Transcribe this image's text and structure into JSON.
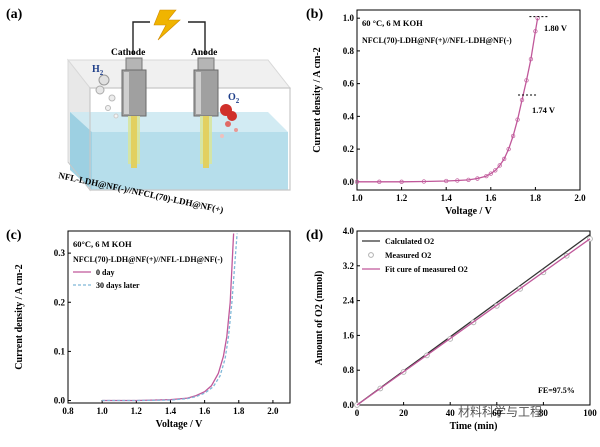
{
  "panel_a": {
    "label": "(a)",
    "cathode_label": "Cathode",
    "anode_label": "Anode",
    "h2_label": "H",
    "h2_sub": "2",
    "o2_label": "O",
    "o2_sub": "2",
    "cell_label": "NFL-LDH@NF(-)//NFCL(70)-LDH@NF(+)",
    "colors": {
      "liquid": "#bfe3ee",
      "electrode": "#9a9a9a",
      "wire": "#e0b020",
      "o2_bubble": "#d0302a",
      "h2_bubble": "#d8d8d8"
    }
  },
  "panel_b": {
    "label": "(b)",
    "condition": "60 °C, 6 M KOH",
    "device": "NFCL(70)-LDH@NF(+)//NFL-LDH@NF(-)",
    "annotation_high": "1.80 V",
    "annotation_low": "1.74 V"
  },
  "panel_c": {
    "label": "(c)",
    "condition": "60°C, 6 M KOH",
    "device": "NFCL(70)-LDH@NF(+)//NFL-LDH@NF(-)"
  },
  "panel_d": {
    "label": "(d)",
    "fe_label": "FE=97.5%",
    "watermark": "材料科学与工程"
  },
  "chart_data": [
    {
      "type": "line",
      "title": "",
      "xlabel": "Voltage / V",
      "ylabel": "Current density / A cm-2",
      "xlim": [
        1.0,
        2.0
      ],
      "ylim": [
        -0.05,
        1.05
      ],
      "xticks": [
        "1.0",
        "1.2",
        "1.4",
        "1.6",
        "1.8",
        "2.0"
      ],
      "yticks": [
        "0.0",
        "0.2",
        "0.4",
        "0.6",
        "0.8",
        "1.0"
      ],
      "series": [
        {
          "name": "NFCL(70)-LDH@NF(+)//NFL-LDH@NF(-)",
          "color": "#c0589a",
          "x": [
            1.0,
            1.1,
            1.2,
            1.3,
            1.4,
            1.45,
            1.5,
            1.54,
            1.58,
            1.6,
            1.62,
            1.64,
            1.66,
            1.68,
            1.7,
            1.72,
            1.74,
            1.76,
            1.78,
            1.8,
            1.81
          ],
          "y": [
            0.0,
            0.0,
            0.0,
            0.002,
            0.005,
            0.008,
            0.012,
            0.02,
            0.035,
            0.05,
            0.07,
            0.1,
            0.14,
            0.2,
            0.28,
            0.38,
            0.5,
            0.62,
            0.75,
            0.92,
            1.0
          ]
        }
      ]
    },
    {
      "type": "line",
      "title": "",
      "xlabel": "Voltage / V",
      "ylabel": "Current density / A cm-2",
      "xlim": [
        0.8,
        2.1
      ],
      "ylim": [
        -0.005,
        0.345
      ],
      "xticks": [
        "0.8",
        "1.0",
        "1.2",
        "1.4",
        "1.6",
        "1.8",
        "2.0"
      ],
      "yticks": [
        "0.0",
        "0.1",
        "0.2",
        "0.3"
      ],
      "series": [
        {
          "name": "0 day",
          "color": "#c0589a",
          "dash": false,
          "x": [
            1.0,
            1.2,
            1.4,
            1.5,
            1.55,
            1.6,
            1.64,
            1.68,
            1.71,
            1.73,
            1.75,
            1.76,
            1.77
          ],
          "y": [
            0.0,
            0.0,
            0.002,
            0.005,
            0.01,
            0.018,
            0.03,
            0.055,
            0.09,
            0.13,
            0.2,
            0.27,
            0.34
          ]
        },
        {
          "name": "30 days later",
          "color": "#7fb8d8",
          "dash": true,
          "x": [
            1.0,
            1.2,
            1.4,
            1.5,
            1.55,
            1.6,
            1.65,
            1.69,
            1.72,
            1.74,
            1.76,
            1.775,
            1.79
          ],
          "y": [
            0.0,
            0.0,
            0.001,
            0.004,
            0.008,
            0.015,
            0.028,
            0.05,
            0.085,
            0.13,
            0.2,
            0.27,
            0.34
          ]
        }
      ]
    },
    {
      "type": "line",
      "title": "",
      "xlabel": "Time (min)",
      "ylabel": "Amount of O2 (mmol)",
      "xlim": [
        0,
        100
      ],
      "ylim": [
        0,
        4.0
      ],
      "xticks": [
        "0",
        "20",
        "40",
        "60",
        "80",
        "100"
      ],
      "yticks": [
        "0.0",
        "0.8",
        "1.6",
        "2.4",
        "3.2",
        "4.0"
      ],
      "series": [
        {
          "name": "Calculated O2",
          "color": "#333333",
          "x": [
            0,
            100
          ],
          "y": [
            0,
            3.92
          ]
        },
        {
          "name": "Measured O2",
          "color": "#b0b0b0",
          "marker": true,
          "x": [
            0,
            10,
            20,
            30,
            40,
            50,
            60,
            70,
            80,
            90,
            100
          ],
          "y": [
            0,
            0.38,
            0.76,
            1.14,
            1.52,
            1.9,
            2.28,
            2.67,
            3.05,
            3.43,
            3.82
          ]
        },
        {
          "name": "Fit cure of measured O2",
          "color": "#c0589a",
          "x": [
            0,
            100
          ],
          "y": [
            0,
            3.82
          ]
        }
      ]
    }
  ]
}
